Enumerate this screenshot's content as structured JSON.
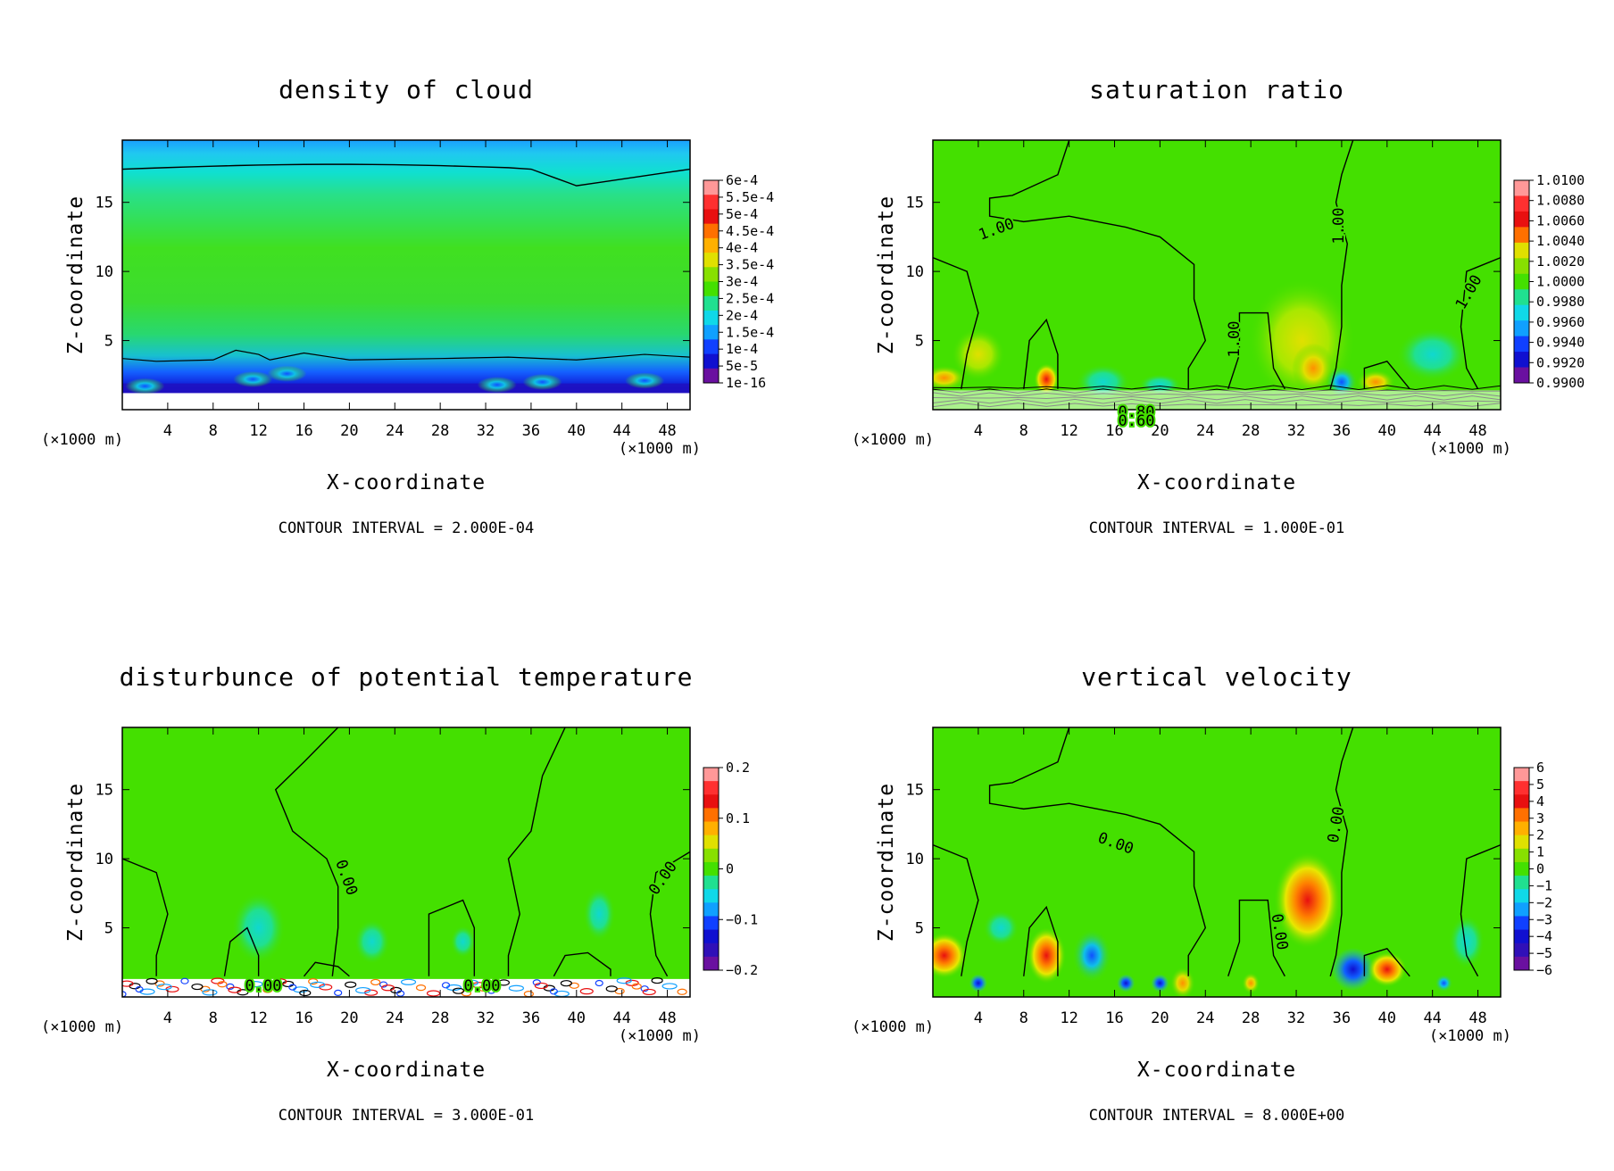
{
  "figure": {
    "x_axis_label": "X-coordinate",
    "y_axis_label": "Z-coordinate",
    "x_unit_left": "(×1000 m)",
    "x_unit_right": "(×1000 m)",
    "colors": {
      "low": "#6a00a8",
      "mid": "#44e000",
      "high": "#ff9090",
      "contour": "#000000"
    }
  },
  "chart_data": [
    {
      "type": "heatmap",
      "title": "density of cloud",
      "xlabel": "X-coordinate",
      "ylabel": "Z-coordinate",
      "x_ticks": [
        "4",
        "8",
        "12",
        "16",
        "20",
        "24",
        "28",
        "32",
        "36",
        "40",
        "44",
        "48"
      ],
      "y_ticks": [
        "5",
        "10",
        "15"
      ],
      "xlim": [
        0,
        50
      ],
      "ylim": [
        0,
        19.5
      ],
      "colorbar": [
        "6e-4",
        "5.5e-4",
        "5e-4",
        "4.5e-4",
        "4e-4",
        "3.5e-4",
        "3e-4",
        "2.5e-4",
        "2e-4",
        "1.5e-4",
        "1e-4",
        "5e-5",
        "1e-16"
      ],
      "contour_labels": [],
      "contour_interval": "CONTOUR INTERVAL = 2.000E-04"
    },
    {
      "type": "heatmap",
      "title": "saturation ratio",
      "xlabel": "X-coordinate",
      "ylabel": "Z-coordinate",
      "x_ticks": [
        "4",
        "8",
        "12",
        "16",
        "20",
        "24",
        "28",
        "32",
        "36",
        "40",
        "44",
        "48"
      ],
      "y_ticks": [
        "5",
        "10",
        "15"
      ],
      "xlim": [
        0,
        50
      ],
      "ylim": [
        0,
        19.5
      ],
      "colorbar": [
        "1.0100",
        "1.0080",
        "1.0060",
        "1.0040",
        "1.0020",
        "1.0000",
        "0.9980",
        "0.9960",
        "0.9940",
        "0.9920",
        "0.9900"
      ],
      "contour_labels": [
        "1.00",
        "1.00",
        "1.00",
        "1.00",
        "0.80",
        "0.60"
      ],
      "contour_interval": "CONTOUR INTERVAL = 1.000E-01"
    },
    {
      "type": "heatmap",
      "title": "disturbunce of potential temperature",
      "xlabel": "X-coordinate",
      "ylabel": "Z-coordinate",
      "x_ticks": [
        "4",
        "8",
        "12",
        "16",
        "20",
        "24",
        "28",
        "32",
        "36",
        "40",
        "44",
        "48"
      ],
      "y_ticks": [
        "5",
        "10",
        "15"
      ],
      "xlim": [
        0,
        50
      ],
      "ylim": [
        0,
        19.5
      ],
      "colorbar": [
        "0.2",
        "0.1",
        "0",
        "−0.1",
        "−0.2"
      ],
      "contour_labels": [
        "0.00",
        "0.00",
        "0.00",
        "0.00"
      ],
      "contour_interval": "CONTOUR INTERVAL = 3.000E-01"
    },
    {
      "type": "heatmap",
      "title": "vertical velocity",
      "xlabel": "X-coordinate",
      "ylabel": "Z-coordinate",
      "x_ticks": [
        "4",
        "8",
        "12",
        "16",
        "20",
        "24",
        "28",
        "32",
        "36",
        "40",
        "44",
        "48"
      ],
      "y_ticks": [
        "5",
        "10",
        "15"
      ],
      "xlim": [
        0,
        50
      ],
      "ylim": [
        0,
        19.5
      ],
      "colorbar": [
        "6",
        "5",
        "4",
        "3",
        "2",
        "1",
        "0",
        "−1",
        "−2",
        "−3",
        "−4",
        "−5",
        "−6"
      ],
      "contour_labels": [
        "0.00",
        "0.00",
        "0.00"
      ],
      "contour_interval": "CONTOUR INTERVAL = 8.000E+00"
    }
  ]
}
